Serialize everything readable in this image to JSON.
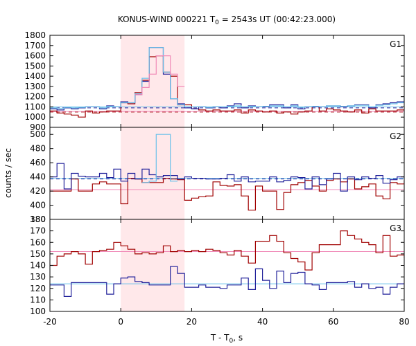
{
  "chart_data": {
    "type": "line",
    "title": {
      "main": "KONUS-WIND 000221 T",
      "sub": "0",
      "rest": " = 2543s UT (00:42:23.000)"
    },
    "xlabel": {
      "main": "T - T",
      "sub": "0",
      "rest": ", s"
    },
    "ylabel": "counts / sec",
    "xlim": [
      -20,
      80
    ],
    "x_ticks": [
      -20,
      0,
      20,
      40,
      60,
      80
    ],
    "highlight_interval": [
      0,
      18
    ],
    "colors": {
      "highlight": "#ffe8ea",
      "dark_red": "#a00000",
      "dark_blue": "#20209a",
      "light_blue": "#6ac0ea",
      "pink": "#f08ab8"
    },
    "panels": [
      {
        "label": "G1",
        "ylim": [
          900,
          1800
        ],
        "y_ticks": [
          900,
          1000,
          1100,
          1200,
          1300,
          1400,
          1500,
          1600,
          1700,
          1800
        ],
        "series": [
          {
            "style": "dark_red",
            "x": [
              -20,
              -18,
              -16,
              -14,
              -12,
              -10,
              -8,
              -6,
              -4,
              -2,
              0,
              2,
              4,
              6,
              8,
              10,
              12,
              14,
              16,
              18,
              20,
              22,
              24,
              26,
              28,
              30,
              32,
              34,
              36,
              38,
              40,
              42,
              44,
              46,
              48,
              50,
              52,
              54,
              56,
              58,
              60,
              62,
              64,
              66,
              68,
              70,
              72,
              74,
              76,
              78,
              80
            ],
            "values": [
              1060,
              1040,
              1030,
              1020,
              1000,
              1060,
              1040,
              1050,
              1060,
              1060,
              1140,
              1130,
              1240,
              1360,
              1590,
              1600,
              1440,
              1400,
              1120,
              1120,
              1080,
              1070,
              1060,
              1070,
              1060,
              1060,
              1070,
              1040,
              1070,
              1060,
              1050,
              1060,
              1040,
              1050,
              1030,
              1050,
              1060,
              1100,
              1060,
              1080,
              1070,
              1060,
              1050,
              1070,
              1040,
              1080,
              1060,
              1060,
              1060,
              1070,
              1060
            ]
          },
          {
            "style": "dark_blue",
            "x": [
              -20,
              -18,
              -16,
              -14,
              -12,
              -10,
              -8,
              -6,
              -4,
              -2,
              0,
              2,
              4,
              6,
              8,
              10,
              12,
              14,
              16,
              18,
              20,
              22,
              24,
              26,
              28,
              30,
              32,
              34,
              36,
              38,
              40,
              42,
              44,
              46,
              48,
              50,
              52,
              54,
              56,
              58,
              60,
              62,
              64,
              66,
              68,
              70,
              72,
              74,
              76,
              78,
              80
            ],
            "values": [
              1080,
              1070,
              1090,
              1080,
              1090,
              1100,
              1100,
              1080,
              1110,
              1100,
              1150,
              1140,
              1220,
              1350,
              1680,
              1680,
              1420,
              1180,
              1130,
              1090,
              1080,
              1100,
              1090,
              1100,
              1090,
              1110,
              1130,
              1090,
              1110,
              1100,
              1100,
              1120,
              1120,
              1090,
              1120,
              1080,
              1100,
              1100,
              1100,
              1110,
              1110,
              1100,
              1110,
              1120,
              1120,
              1090,
              1120,
              1130,
              1140,
              1150,
              1210
            ]
          },
          {
            "style": "light_blue",
            "x": [
              -20,
              -18,
              -16,
              -14,
              -12,
              -10,
              -8,
              -6,
              -4,
              -2,
              0,
              2,
              4,
              6,
              8,
              10,
              12,
              14,
              16,
              18,
              20,
              22,
              24,
              26,
              28,
              30,
              32,
              34,
              36,
              38,
              40,
              42,
              44,
              46,
              48,
              50,
              52,
              54,
              56,
              58,
              60,
              62,
              64,
              66,
              68,
              70,
              72,
              74,
              76,
              78,
              80
            ],
            "values": [
              1090,
              1085,
              1095,
              1090,
              1095,
              1100,
              1100,
              1090,
              1105,
              1100,
              1140,
              1140,
              1230,
              1380,
              1680,
              1680,
              1440,
              1180,
              1120,
              1100,
              1100,
              1100,
              1095,
              1100,
              1100,
              1105,
              1110,
              1100,
              1105,
              1100,
              1105,
              1110,
              1110,
              1100,
              1110,
              1095,
              1100,
              1105,
              1100,
              1110,
              1110,
              1105,
              1110,
              1115,
              1115,
              1100,
              1115,
              1120,
              1130,
              1140,
              1190
            ]
          },
          {
            "style": "pink",
            "x": [
              4,
              6,
              8,
              10,
              12,
              14,
              16
            ],
            "values": [
              1220,
              1290,
              1420,
              1600,
              1600,
              1420,
              1300
            ]
          }
        ],
        "levels": [
          {
            "style": "light_blue",
            "dashed": false,
            "value": 1100
          },
          {
            "style": "dark_blue",
            "dashed": true,
            "value": 1090
          },
          {
            "style": "dark_red",
            "dashed": true,
            "value": 1050
          },
          {
            "style": "pink",
            "dashed": false,
            "value": 1055
          }
        ]
      },
      {
        "label": "G2",
        "ylim": [
          380,
          510
        ],
        "y_ticks": [
          380,
          400,
          420,
          440,
          460,
          480,
          500
        ],
        "series": [
          {
            "style": "dark_red",
            "x": [
              -20,
              -18,
              -16,
              -14,
              -12,
              -10,
              -8,
              -6,
              -4,
              -2,
              0,
              2,
              4,
              6,
              8,
              10,
              12,
              14,
              16,
              18,
              20,
              22,
              24,
              26,
              28,
              30,
              32,
              34,
              36,
              38,
              40,
              42,
              44,
              46,
              48,
              50,
              52,
              54,
              56,
              58,
              60,
              62,
              64,
              66,
              68,
              70,
              72,
              74,
              76,
              78,
              80
            ],
            "values": [
              420,
              420,
              420,
              437,
              420,
              420,
              430,
              433,
              430,
              430,
              402,
              438,
              437,
              432,
              432,
              432,
              438,
              437,
              436,
              407,
              410,
              412,
              413,
              433,
              428,
              427,
              429,
              413,
              393,
              427,
              420,
              420,
              394,
              418,
              429,
              432,
              435,
              427,
              420,
              435,
              437,
              433,
              437,
              423,
              426,
              430,
              413,
              409,
              432,
              430,
              434
            ]
          },
          {
            "style": "dark_blue",
            "x": [
              -20,
              -18,
              -16,
              -14,
              -12,
              -10,
              -8,
              -6,
              -4,
              -2,
              0,
              2,
              4,
              6,
              8,
              10,
              12,
              14,
              16,
              18,
              20,
              22,
              24,
              26,
              28,
              30,
              32,
              34,
              36,
              38,
              40,
              42,
              44,
              46,
              48,
              50,
              52,
              54,
              56,
              58,
              60,
              62,
              64,
              66,
              68,
              70,
              72,
              74,
              76,
              78,
              80
            ],
            "values": [
              440,
              459,
              423,
              445,
              441,
              440,
              440,
              445,
              439,
              451,
              434,
              445,
              437,
              451,
              443,
              440,
              442,
              442,
              437,
              440,
              438,
              438,
              437,
              437,
              438,
              443,
              434,
              440,
              433,
              434,
              434,
              440,
              433,
              435,
              440,
              439,
              423,
              440,
              429,
              437,
              445,
              420,
              440,
              436,
              440,
              438,
              442,
              431,
              436,
              440,
              438
            ]
          },
          {
            "style": "light_blue",
            "x": [
              6,
              8,
              10,
              12,
              14
            ],
            "values": [
              432,
              434,
              500,
              500,
              434
            ]
          }
        ],
        "levels": [
          {
            "style": "light_blue",
            "dashed": false,
            "value": 438
          },
          {
            "style": "dark_blue",
            "dashed": true,
            "value": 437
          },
          {
            "style": "pink",
            "dashed": false,
            "value": 422
          }
        ]
      },
      {
        "label": "G3",
        "ylim": [
          100,
          180
        ],
        "y_ticks": [
          100,
          110,
          120,
          130,
          140,
          150,
          160,
          170,
          180
        ],
        "series": [
          {
            "style": "dark_red",
            "x": [
              -20,
              -18,
              -16,
              -14,
              -12,
              -10,
              -8,
              -6,
              -4,
              -2,
              0,
              2,
              4,
              6,
              8,
              10,
              12,
              14,
              16,
              18,
              20,
              22,
              24,
              26,
              28,
              30,
              32,
              34,
              36,
              38,
              40,
              42,
              44,
              46,
              48,
              50,
              52,
              54,
              56,
              58,
              60,
              62,
              64,
              66,
              68,
              70,
              72,
              74,
              76,
              78,
              80
            ],
            "values": [
              140,
              148,
              150,
              152,
              150,
              141,
              152,
              153,
              154,
              160,
              157,
              154,
              150,
              151,
              150,
              151,
              157,
              152,
              153,
              152,
              153,
              152,
              154,
              153,
              151,
              149,
              153,
              148,
              142,
              161,
              161,
              166,
              161,
              151,
              146,
              143,
              136,
              151,
              158,
              158,
              158,
              170,
              166,
              163,
              160,
              158,
              151,
              166,
              148,
              149,
              147
            ]
          },
          {
            "style": "dark_blue",
            "x": [
              -20,
              -18,
              -16,
              -14,
              -12,
              -10,
              -8,
              -6,
              -4,
              -2,
              0,
              2,
              4,
              6,
              8,
              10,
              12,
              14,
              16,
              18,
              20,
              22,
              24,
              26,
              28,
              30,
              32,
              34,
              36,
              38,
              40,
              42,
              44,
              46,
              48,
              50,
              52,
              54,
              56,
              58,
              60,
              62,
              64,
              66,
              68,
              70,
              72,
              74,
              76,
              78,
              80
            ],
            "values": [
              123,
              123,
              113,
              125,
              125,
              125,
              125,
              125,
              115,
              124,
              129,
              130,
              126,
              125,
              123,
              123,
              123,
              139,
              133,
              121,
              121,
              123,
              121,
              121,
              120,
              123,
              123,
              129,
              119,
              137,
              127,
              120,
              135,
              125,
              133,
              134,
              124,
              123,
              119,
              125,
              125,
              125,
              126,
              121,
              124,
              120,
              121,
              115,
              121,
              124,
              124
            ]
          }
        ],
        "levels": [
          {
            "style": "light_blue",
            "dashed": false,
            "value": 124
          },
          {
            "style": "pink",
            "dashed": false,
            "value": 152
          }
        ]
      }
    ]
  }
}
